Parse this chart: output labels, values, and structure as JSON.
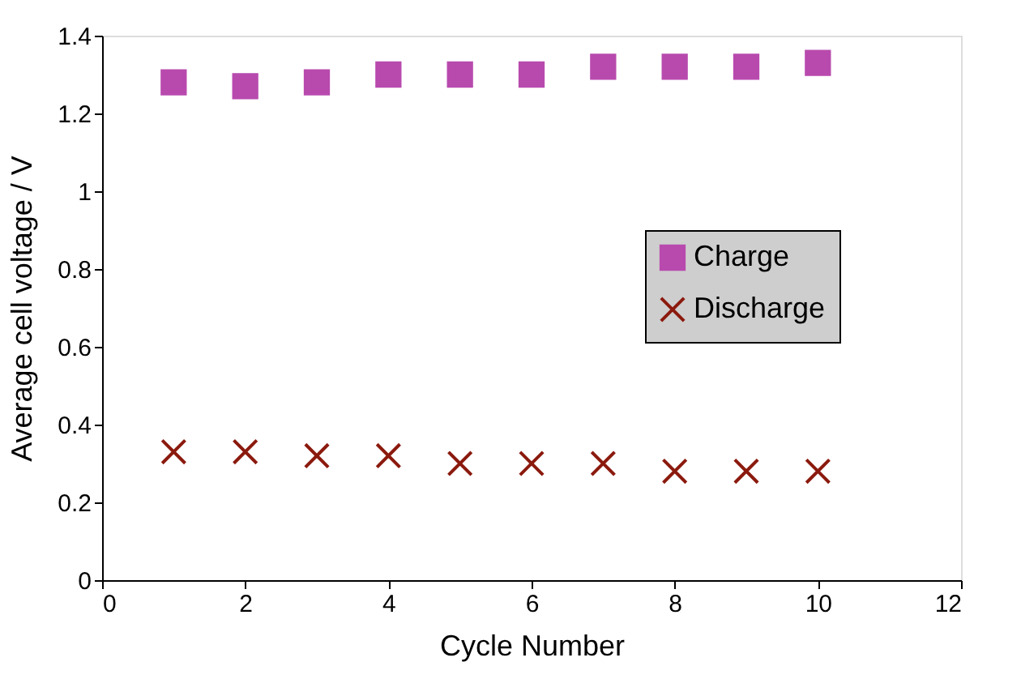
{
  "chart_data": {
    "type": "scatter",
    "xlabel": "Cycle Number",
    "ylabel": "Average cell voltage / V",
    "x": [
      1,
      2,
      3,
      4,
      5,
      6,
      7,
      8,
      9,
      10
    ],
    "series": [
      {
        "name": "Charge",
        "color": "#b84aae",
        "marker": "square",
        "values": [
          1.28,
          1.27,
          1.28,
          1.3,
          1.3,
          1.3,
          1.32,
          1.32,
          1.32,
          1.33
        ]
      },
      {
        "name": "Discharge",
        "color": "#8b1a0e",
        "marker": "cross",
        "values": [
          0.33,
          0.33,
          0.32,
          0.32,
          0.3,
          0.3,
          0.3,
          0.28,
          0.28,
          0.28
        ]
      }
    ],
    "xlim": [
      0,
      12
    ],
    "xticks": [
      0,
      2,
      4,
      6,
      8,
      10,
      12
    ],
    "ylim": [
      0,
      1.4
    ],
    "yticks": [
      0,
      0.2,
      0.4,
      0.6,
      0.8,
      1,
      1.2,
      1.4
    ],
    "grid": false,
    "legend": "right"
  }
}
